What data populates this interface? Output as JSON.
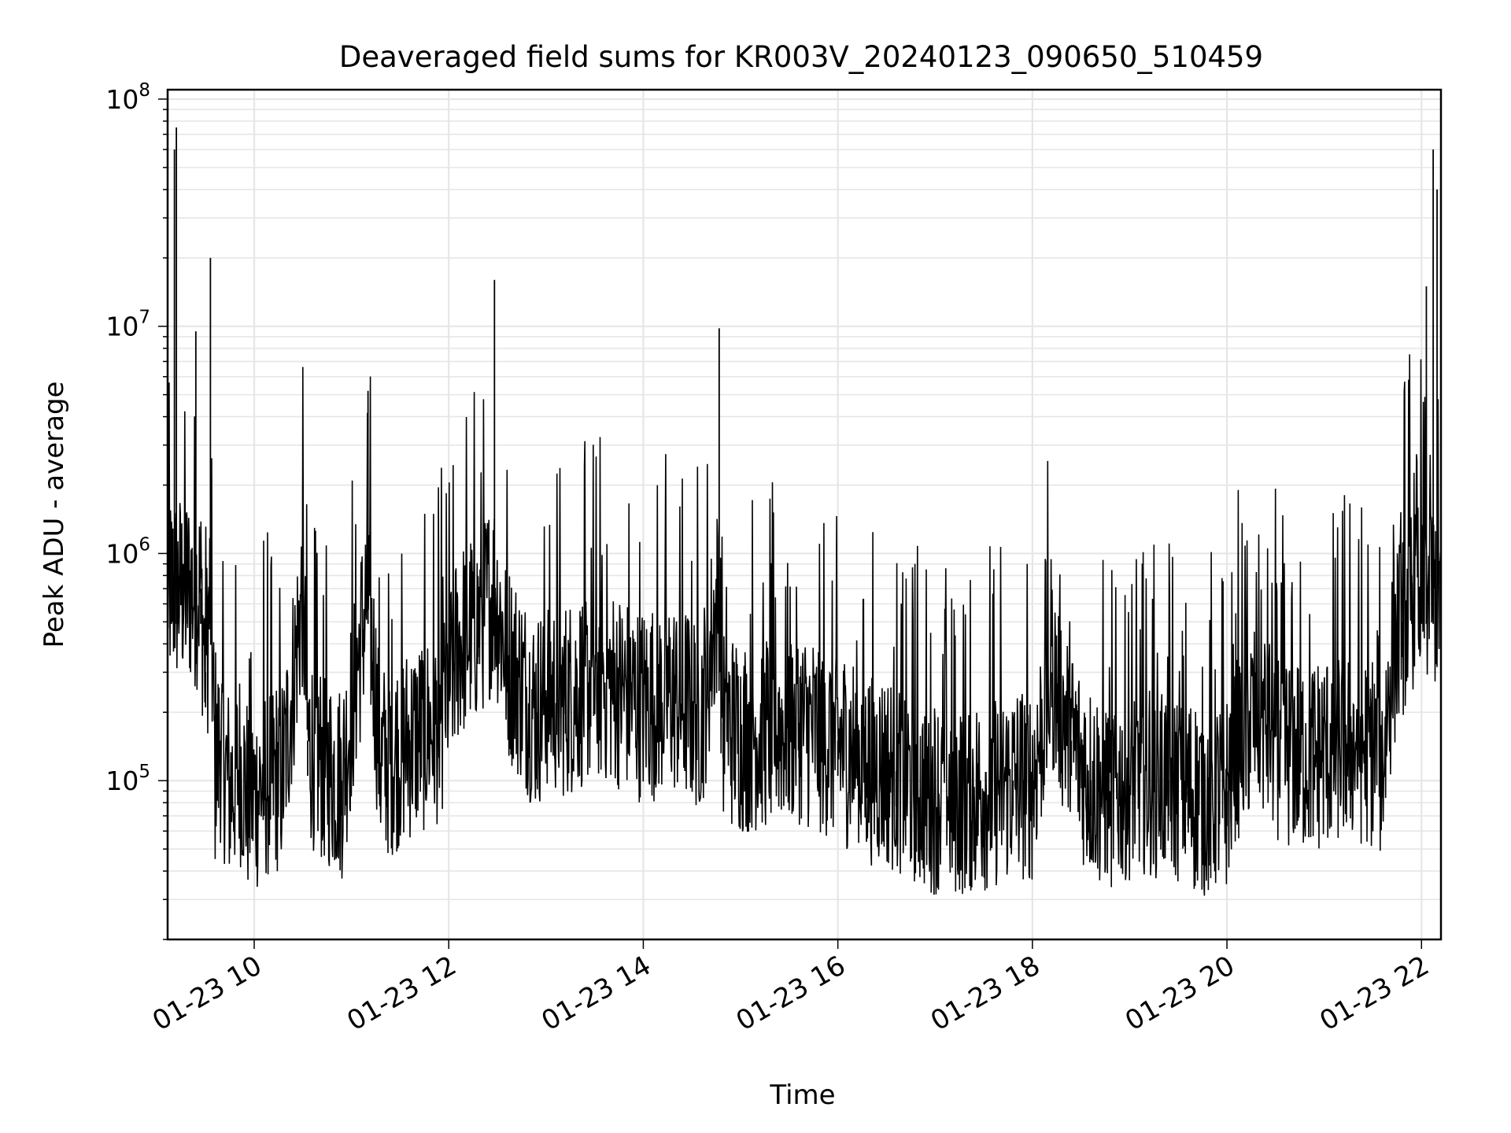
{
  "chart_data": {
    "type": "line",
    "title": "Deaveraged field sums for KR003V_20240123_090650_510459",
    "xlabel": "Time",
    "ylabel": "Peak ADU - average",
    "yscale": "log",
    "ylim": [
      20000,
      110000000
    ],
    "xlim_hours": [
      9.11,
      22.2
    ],
    "grid": true,
    "line_color": "#000000",
    "grid_color": "#e6e6e6",
    "x_ticks": [
      {
        "hour": 10,
        "label": "01-23 10"
      },
      {
        "hour": 12,
        "label": "01-23 12"
      },
      {
        "hour": 14,
        "label": "01-23 14"
      },
      {
        "hour": 16,
        "label": "01-23 16"
      },
      {
        "hour": 18,
        "label": "01-23 18"
      },
      {
        "hour": 20,
        "label": "01-23 20"
      },
      {
        "hour": 22,
        "label": "01-23 22"
      }
    ],
    "y_ticks": [
      {
        "exp": 5,
        "label": "10",
        "sup": "5"
      },
      {
        "exp": 6,
        "label": "10",
        "sup": "6"
      },
      {
        "exp": 7,
        "label": "10",
        "sup": "7"
      },
      {
        "exp": 8,
        "label": "10",
        "sup": "8"
      }
    ],
    "series": [
      {
        "x_hours": [
          9.11,
          9.15,
          9.18,
          9.2,
          9.22,
          9.27,
          9.3,
          9.35,
          9.4,
          9.45,
          9.5,
          9.55,
          9.6,
          9.65,
          9.75,
          9.85,
          9.95,
          10.1,
          10.3,
          10.5,
          10.55,
          10.7,
          10.9,
          11.17,
          11.3,
          11.6,
          11.9,
          12.1,
          12.3,
          12.47,
          12.6,
          12.9,
          13.0,
          13.2,
          13.5,
          13.7,
          14.0,
          14.3,
          14.6,
          14.78,
          14.82,
          15.0,
          15.3,
          15.6,
          15.8,
          16.0,
          16.3,
          16.6,
          16.9,
          17.2,
          17.5,
          17.8,
          18.0,
          18.2,
          18.4,
          18.6,
          18.8,
          19.1,
          19.4,
          19.6,
          19.8,
          20.0,
          20.1,
          20.3,
          20.6,
          20.9,
          21.2,
          21.5,
          21.6,
          21.7,
          21.8,
          21.9,
          22.0,
          22.05,
          22.12,
          22.16,
          22.2
        ],
        "y": [
          700000,
          1200000,
          60000000,
          75000000,
          800000,
          900000,
          1500000,
          800000,
          9500000,
          700000,
          300000,
          20000000,
          100000,
          150000,
          90000,
          120000,
          80000,
          100000,
          110000,
          2000000,
          150000,
          120000,
          100000,
          5200000,
          120000,
          150000,
          180000,
          400000,
          500000,
          16000000,
          350000,
          200000,
          250000,
          230000,
          280000,
          260000,
          220000,
          240000,
          200000,
          9800000,
          180000,
          160000,
          170000,
          180000,
          160000,
          150000,
          120000,
          110000,
          90000,
          85000,
          90000,
          100000,
          100000,
          300000,
          150000,
          100000,
          90000,
          110000,
          100000,
          90000,
          85000,
          90000,
          150000,
          200000,
          140000,
          130000,
          150000,
          140000,
          120000,
          350000,
          500000,
          800000,
          1000000,
          15000000,
          60000000,
          40000000,
          1000000
        ]
      }
    ]
  }
}
